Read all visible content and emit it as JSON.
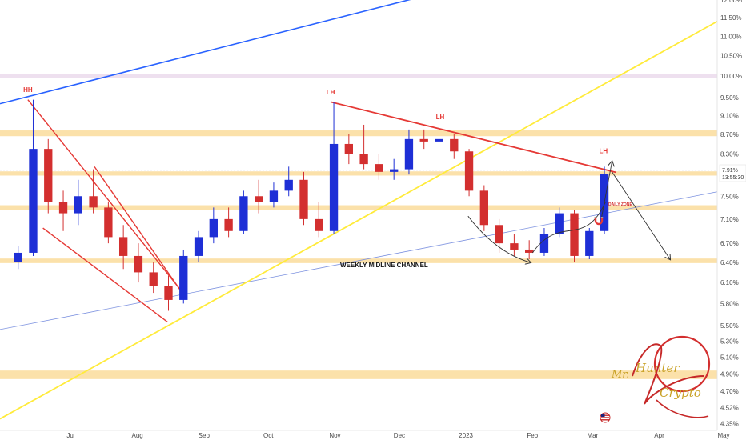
{
  "chart_data": {
    "type": "candlestick",
    "y_axis": {
      "scale": "log",
      "ylim": [
        4.28,
        12.0
      ],
      "tick_labels": [
        "12.00%",
        "11.50%",
        "11.00%",
        "10.50%",
        "10.00%",
        "9.50%",
        "9.10%",
        "8.70%",
        "8.30%",
        "7.50%",
        "7.10%",
        "6.70%",
        "6.40%",
        "6.10%",
        "5.80%",
        "5.50%",
        "5.30%",
        "5.10%",
        "4.90%",
        "4.70%",
        "4.52%",
        "4.35%"
      ],
      "tick_values": [
        12.0,
        11.5,
        11.0,
        10.5,
        10.0,
        9.5,
        9.1,
        8.7,
        8.3,
        7.5,
        7.1,
        6.7,
        6.4,
        6.1,
        5.8,
        5.5,
        5.3,
        5.1,
        4.9,
        4.7,
        4.52,
        4.35
      ],
      "position": "right"
    },
    "x_axis": {
      "tick_labels": [
        "Jul",
        "Aug",
        "Sep",
        "Oct",
        "Nov",
        "Dec",
        "2023",
        "Feb",
        "Mar",
        "Apr",
        "May"
      ],
      "tick_dates": [
        "2022-07-01",
        "2022-08-01",
        "2022-09-01",
        "2022-10-01",
        "2022-11-01",
        "2022-12-01",
        "2023-01-01",
        "2023-02-01",
        "2023-03-01",
        "2023-04-01",
        "2023-05-01"
      ],
      "range": [
        "2022-06-01",
        "2023-05-01"
      ]
    },
    "current_price": {
      "value": "7.91%",
      "timer": "13:55:30",
      "price": 7.91,
      "color": "#2e7d32"
    },
    "candles_ohlc_weekly_approx": [
      [
        "2022-06-06",
        6.4,
        6.65,
        6.3,
        6.55
      ],
      [
        "2022-06-13",
        6.55,
        9.45,
        6.5,
        8.4
      ],
      [
        "2022-06-20",
        8.4,
        8.6,
        7.2,
        7.4
      ],
      [
        "2022-06-27",
        7.4,
        7.6,
        6.9,
        7.2
      ],
      [
        "2022-07-04",
        7.2,
        7.8,
        7.0,
        7.5
      ],
      [
        "2022-07-11",
        7.5,
        8.0,
        7.2,
        7.3
      ],
      [
        "2022-07-18",
        7.3,
        7.4,
        6.7,
        6.8
      ],
      [
        "2022-07-25",
        6.8,
        7.0,
        6.3,
        6.5
      ],
      [
        "2022-08-01",
        6.5,
        6.7,
        6.1,
        6.25
      ],
      [
        "2022-08-08",
        6.25,
        6.4,
        5.95,
        6.05
      ],
      [
        "2022-08-15",
        6.05,
        6.2,
        5.7,
        5.85
      ],
      [
        "2022-08-22",
        5.85,
        6.6,
        5.8,
        6.5
      ],
      [
        "2022-08-29",
        6.5,
        6.9,
        6.4,
        6.8
      ],
      [
        "2022-09-05",
        6.8,
        7.3,
        6.7,
        7.1
      ],
      [
        "2022-09-12",
        7.1,
        7.3,
        6.8,
        6.9
      ],
      [
        "2022-09-19",
        6.9,
        7.6,
        6.85,
        7.5
      ],
      [
        "2022-09-26",
        7.5,
        7.8,
        7.2,
        7.4
      ],
      [
        "2022-10-03",
        7.4,
        7.75,
        7.3,
        7.6
      ],
      [
        "2022-10-10",
        7.6,
        8.05,
        7.5,
        7.8
      ],
      [
        "2022-10-17",
        7.8,
        7.95,
        7.0,
        7.1
      ],
      [
        "2022-10-24",
        7.1,
        7.4,
        6.8,
        6.9
      ],
      [
        "2022-10-31",
        6.9,
        9.4,
        6.85,
        8.5
      ],
      [
        "2022-11-07",
        8.5,
        8.7,
        8.1,
        8.3
      ],
      [
        "2022-11-14",
        8.3,
        8.9,
        8.0,
        8.1
      ],
      [
        "2022-11-21",
        8.1,
        8.3,
        7.8,
        7.95
      ],
      [
        "2022-11-28",
        7.95,
        8.2,
        7.8,
        8.0
      ],
      [
        "2022-12-05",
        8.0,
        8.8,
        7.9,
        8.6
      ],
      [
        "2022-12-12",
        8.6,
        8.8,
        8.4,
        8.55
      ],
      [
        "2022-12-19",
        8.55,
        8.85,
        8.4,
        8.6
      ],
      [
        "2022-12-26",
        8.6,
        8.7,
        8.2,
        8.35
      ],
      [
        "2023-01-02",
        8.35,
        8.4,
        7.5,
        7.6
      ],
      [
        "2023-01-09",
        7.6,
        7.7,
        6.9,
        7.0
      ],
      [
        "2023-01-16",
        7.0,
        7.1,
        6.55,
        6.7
      ],
      [
        "2023-01-23",
        6.7,
        6.85,
        6.5,
        6.6
      ],
      [
        "2023-01-30",
        6.6,
        6.75,
        6.45,
        6.55
      ],
      [
        "2023-02-06",
        6.55,
        6.95,
        6.5,
        6.85
      ],
      [
        "2023-02-13",
        6.85,
        7.3,
        6.8,
        7.2
      ],
      [
        "2023-02-20",
        7.2,
        7.25,
        6.4,
        6.5
      ],
      [
        "2023-02-27",
        6.5,
        6.95,
        6.45,
        6.9
      ],
      [
        "2023-03-06",
        6.9,
        8.05,
        6.85,
        7.91
      ]
    ],
    "annotations": [
      {
        "label": "HH",
        "date": "2022-06-14",
        "price": 9.55,
        "color": "#e53935"
      },
      {
        "label": "LH",
        "date": "2022-11-02",
        "price": 9.5,
        "color": "#e53935"
      },
      {
        "label": "LH",
        "date": "2022-12-23",
        "price": 8.95,
        "color": "#e53935"
      },
      {
        "label": "LH",
        "date": "2023-03-09",
        "price": 8.25,
        "color": "#e53935"
      }
    ],
    "zone_label": "DAILY ZONE",
    "channel_label": "WEEKLY MIDLINE CHANNEL",
    "horizontal_zones": [
      {
        "low": 9.95,
        "high": 10.05,
        "color": "#e8d6ea"
      },
      {
        "low": 8.66,
        "high": 8.78,
        "color": "#f9d78d"
      },
      {
        "low": 7.88,
        "high": 7.96,
        "color": "#f9d78d"
      },
      {
        "low": 7.26,
        "high": 7.34,
        "color": "#f9d78d"
      },
      {
        "low": 6.39,
        "high": 6.46,
        "color": "#f9d78d"
      },
      {
        "low": 4.84,
        "high": 4.94,
        "color": "#f9d78d"
      }
    ],
    "trendlines": [
      {
        "from": [
          "2022-06-01",
          9.36
        ],
        "to": [
          "2022-12-12",
          12.06
        ],
        "color": "#2962ff",
        "width": 1.6
      },
      {
        "from": [
          "2022-06-01",
          5.45
        ],
        "to": [
          "2023-05-01",
          7.58
        ],
        "color": "#7e93e0",
        "width": 0.8
      },
      {
        "from": [
          "2022-06-01",
          4.4
        ],
        "to": [
          "2023-05-01",
          11.4
        ],
        "color": "#ffeb3b",
        "width": 1.8
      },
      {
        "from": [
          "2022-11-02",
          9.4
        ],
        "to": [
          "2023-03-15",
          7.94
        ],
        "color": "#e53935",
        "width": 1.8
      },
      {
        "from": [
          "2022-06-14",
          9.45
        ],
        "to": [
          "2022-08-26",
          5.92
        ],
        "color": "#e53935",
        "width": 1.4
      },
      {
        "from": [
          "2022-06-21",
          6.95
        ],
        "to": [
          "2022-08-18",
          5.55
        ],
        "color": "#e53935",
        "width": 1.4
      },
      {
        "from": [
          "2022-07-15",
          8.05
        ],
        "to": [
          "2022-08-26",
          5.9
        ],
        "color": "#e53935",
        "width": 1.4
      }
    ],
    "projection_arrows": [
      {
        "points": [
          [
            "2023-01-05",
            7.15
          ],
          [
            "2023-01-18",
            6.55
          ],
          [
            "2023-02-03",
            6.4
          ]
        ],
        "color": "#333"
      },
      {
        "points": [
          [
            "2023-03-08",
            7.1
          ],
          [
            "2023-03-13",
            8.15
          ]
        ],
        "color": "#333"
      },
      {
        "points": [
          [
            "2023-03-13",
            7.95
          ],
          [
            "2023-04-09",
            6.45
          ]
        ],
        "color": "#333"
      }
    ],
    "curve_annotation": {
      "points": [
        [
          "2023-02-04",
          6.55
        ],
        [
          "2023-02-17",
          7.2
        ],
        [
          "2023-02-28",
          6.6
        ],
        [
          "2023-03-10",
          7.4
        ]
      ],
      "color": "#333"
    },
    "watermark": {
      "text_line1": "Mr.",
      "text_line2": "Hunter",
      "text_line3": "Crypto"
    }
  }
}
